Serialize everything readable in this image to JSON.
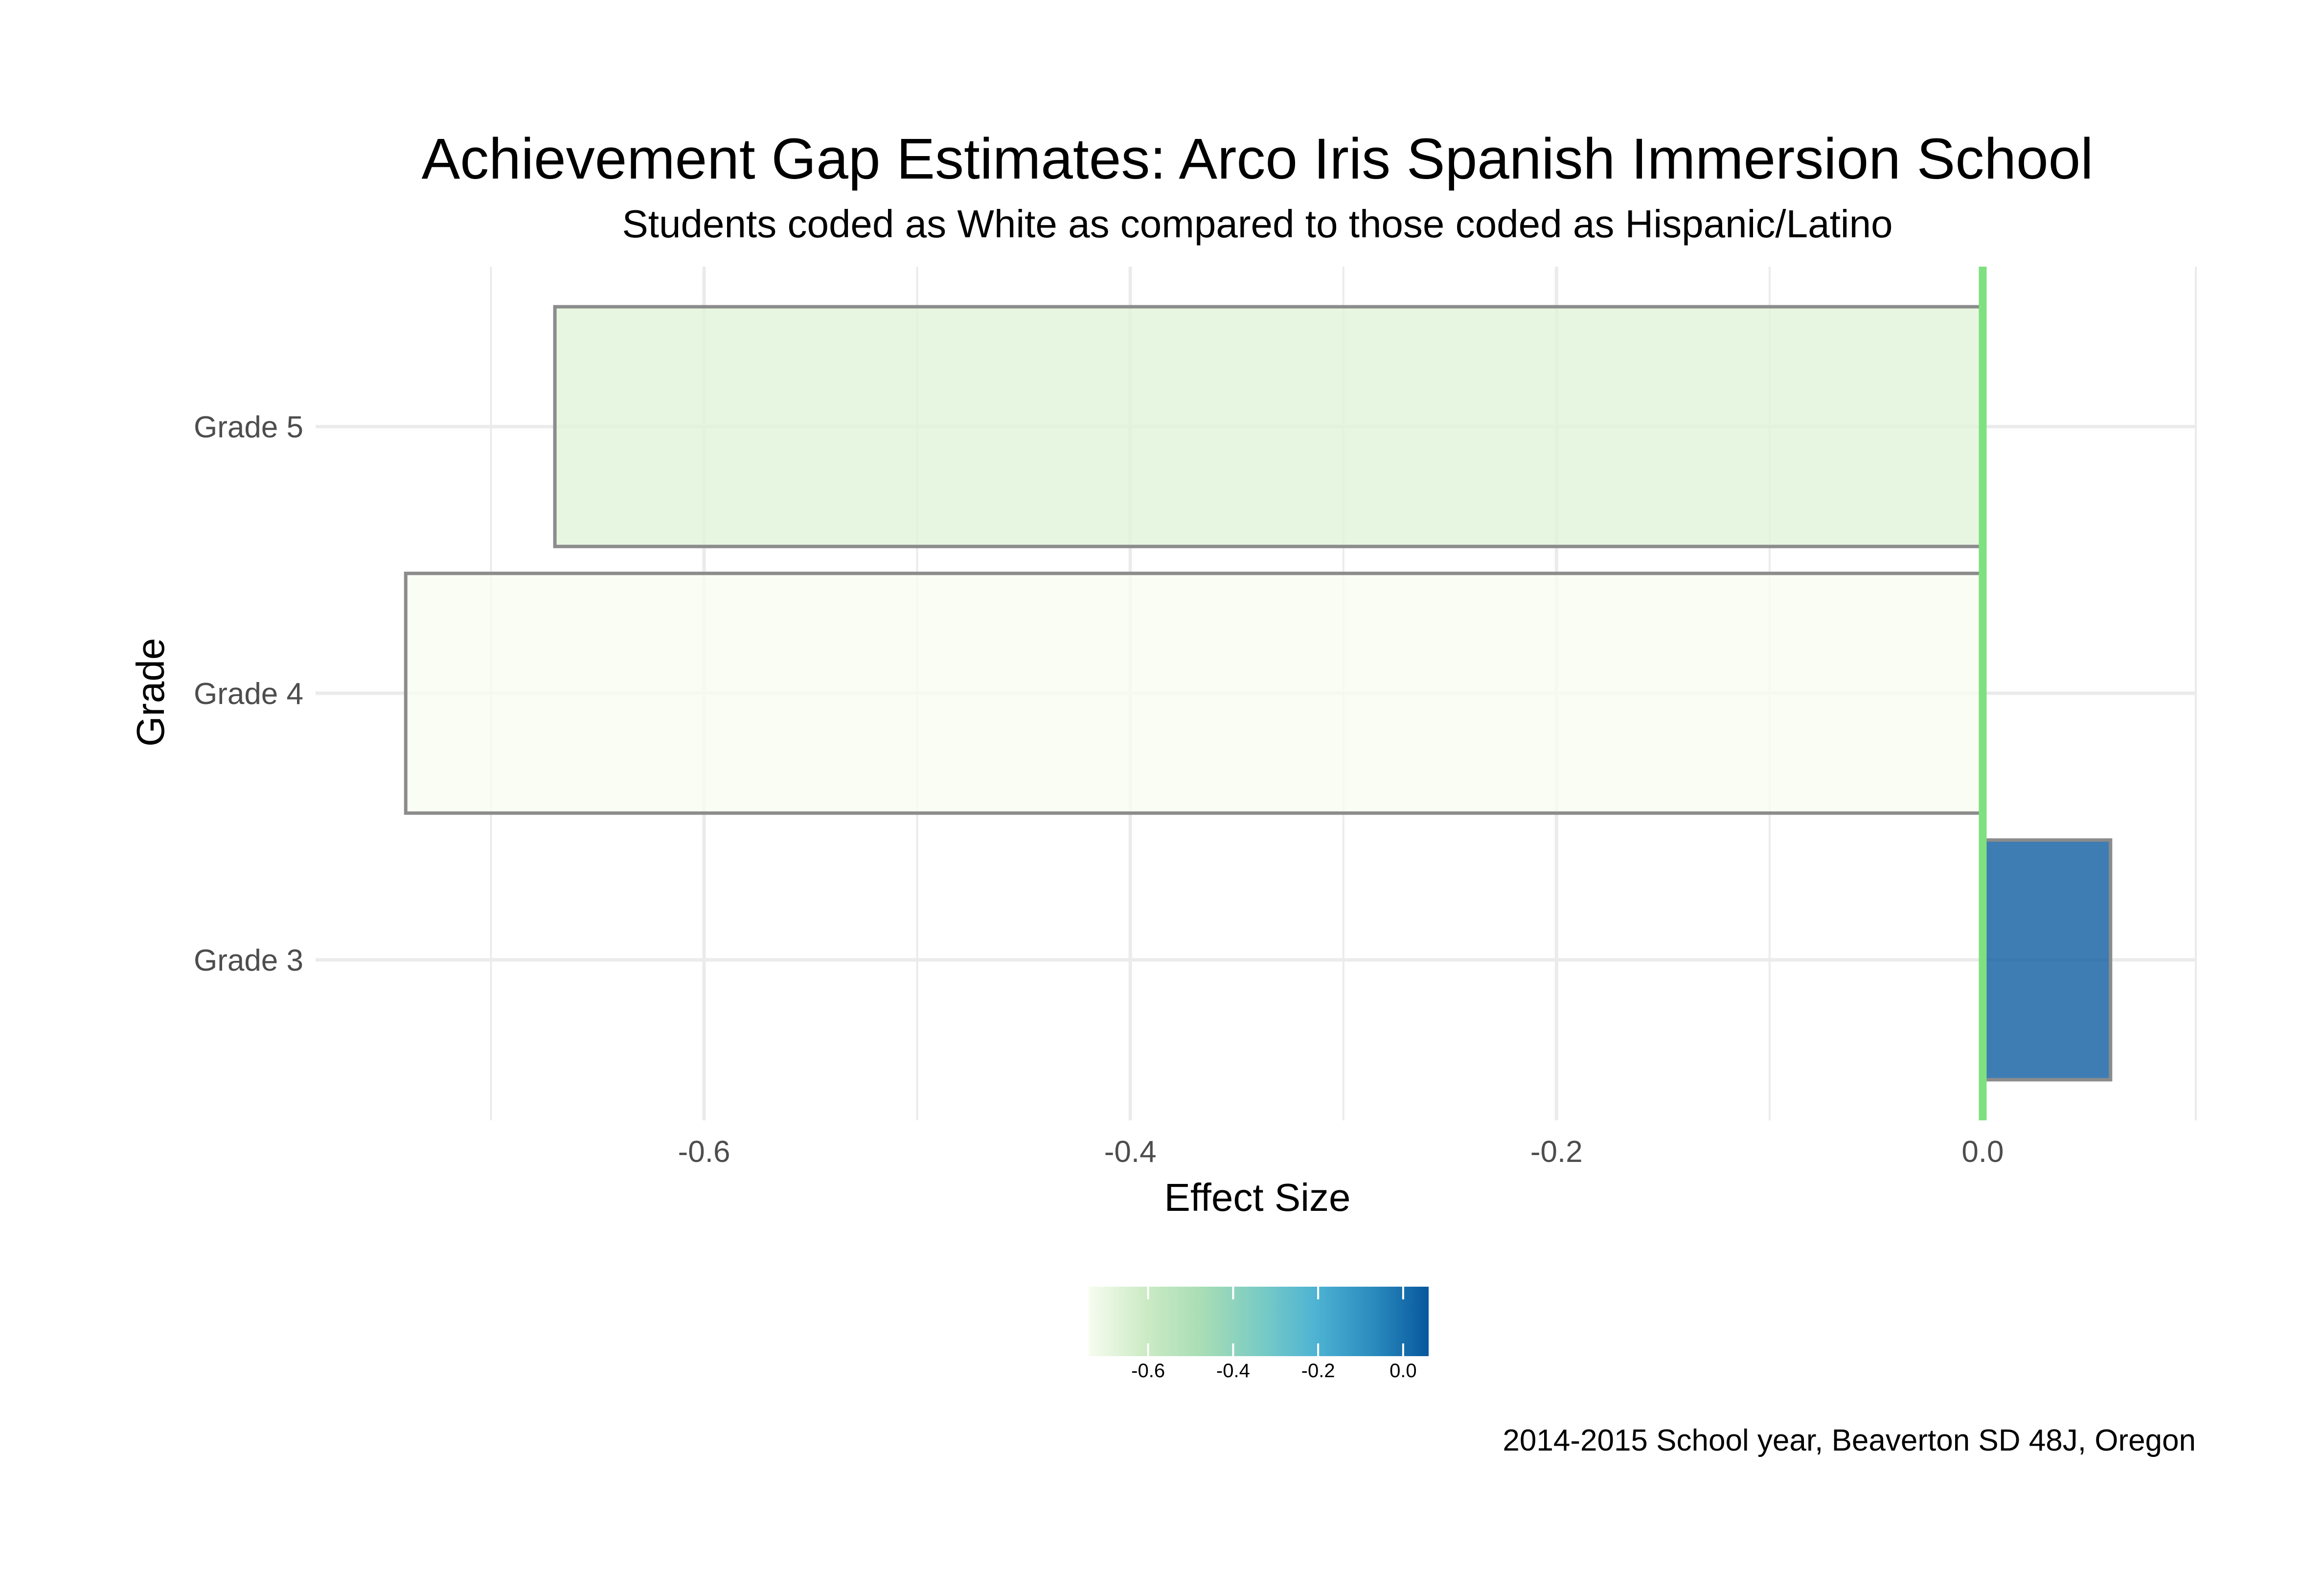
{
  "chart_data": {
    "type": "bar",
    "orientation": "horizontal",
    "title": "Achievement Gap Estimates: Arco Iris Spanish Immersion School",
    "subtitle": "Students coded as White as compared to those coded as Hispanic/Latino",
    "xlabel": "Effect Size",
    "ylabel": "Grade",
    "caption": "2014-2015 School year, Beaverton SD 48J, Oregon",
    "categories": [
      "Grade 3",
      "Grade 4",
      "Grade 5"
    ],
    "values": [
      0.06,
      -0.74,
      -0.67
    ],
    "xlim": [
      -0.78,
      0.1
    ],
    "xticks": [
      -0.6,
      -0.4,
      -0.2,
      0.0
    ],
    "xtick_labels": [
      "-0.6",
      "-0.4",
      "-0.2",
      "0.0"
    ],
    "reference_line": {
      "x": 0.0,
      "color": "#7fe07f"
    },
    "grid": true,
    "bar_outline_color": "#8c8c8c",
    "legend": {
      "type": "colorbar",
      "placement": "bottom",
      "range": [
        -0.74,
        0.06
      ],
      "ticks": [
        -0.6,
        -0.4,
        -0.2,
        0.0
      ],
      "tick_labels": [
        "-0.6",
        "-0.4",
        "-0.2",
        "0.0"
      ],
      "colors": [
        "#f7fcf0",
        "#ccebc5",
        "#a8ddb5",
        "#7bccc4",
        "#4eb3d3",
        "#2b8cbe",
        "#08589e"
      ]
    }
  }
}
